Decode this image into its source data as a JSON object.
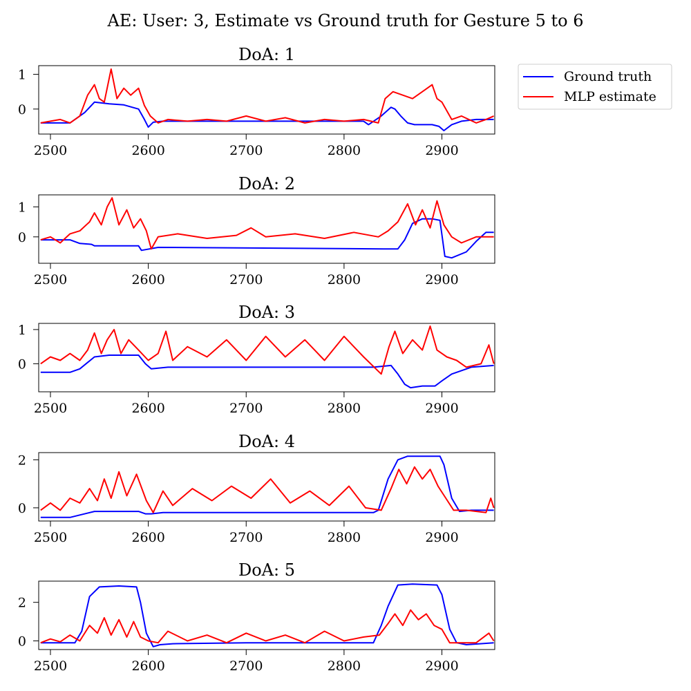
{
  "suptitle": "AE: User: 3, Estimate vs Ground truth for Gesture 5 to 6",
  "legend": {
    "placement": "outside-top-right",
    "entries": [
      {
        "label": "Ground truth",
        "color": "#0000ff"
      },
      {
        "label": "MLP estimate",
        "color": "#ff0000"
      }
    ]
  },
  "chart_data": [
    {
      "type": "line",
      "title": "DoA: 1",
      "xlim": [
        2488,
        2954
      ],
      "ylim": [
        -0.72,
        1.25
      ],
      "xticks": [
        2500,
        2600,
        2700,
        2800,
        2900
      ],
      "yticks": [
        0,
        1
      ],
      "series": [
        {
          "name": "Ground truth",
          "color": "#0000ff",
          "x": [
            2490,
            2520,
            2535,
            2545,
            2560,
            2575,
            2590,
            2596,
            2600,
            2605,
            2615,
            2700,
            2820,
            2825,
            2838,
            2848,
            2852,
            2858,
            2865,
            2872,
            2890,
            2897,
            2902,
            2910,
            2920,
            2935,
            2953
          ],
          "y": [
            -0.4,
            -0.4,
            -0.1,
            0.2,
            0.15,
            0.12,
            0.0,
            -0.3,
            -0.52,
            -0.38,
            -0.35,
            -0.35,
            -0.35,
            -0.45,
            -0.2,
            0.05,
            0.0,
            -0.2,
            -0.4,
            -0.45,
            -0.45,
            -0.5,
            -0.62,
            -0.45,
            -0.35,
            -0.3,
            -0.3
          ]
        },
        {
          "name": "MLP estimate",
          "color": "#ff0000",
          "x": [
            2490,
            2500,
            2510,
            2520,
            2530,
            2538,
            2545,
            2550,
            2555,
            2562,
            2568,
            2575,
            2582,
            2590,
            2596,
            2602,
            2610,
            2620,
            2640,
            2660,
            2680,
            2700,
            2720,
            2740,
            2760,
            2780,
            2800,
            2820,
            2835,
            2842,
            2850,
            2860,
            2870,
            2880,
            2890,
            2895,
            2900,
            2910,
            2920,
            2935,
            2945,
            2953
          ],
          "y": [
            -0.4,
            -0.35,
            -0.3,
            -0.4,
            -0.2,
            0.4,
            0.7,
            0.3,
            0.2,
            1.15,
            0.3,
            0.6,
            0.4,
            0.6,
            0.1,
            -0.2,
            -0.4,
            -0.3,
            -0.35,
            -0.3,
            -0.35,
            -0.2,
            -0.35,
            -0.25,
            -0.4,
            -0.3,
            -0.35,
            -0.3,
            -0.4,
            0.3,
            0.5,
            0.4,
            0.3,
            0.5,
            0.7,
            0.3,
            0.2,
            -0.3,
            -0.2,
            -0.4,
            -0.3,
            -0.2
          ]
        }
      ]
    },
    {
      "type": "line",
      "title": "DoA: 2",
      "xlim": [
        2488,
        2954
      ],
      "ylim": [
        -0.88,
        1.4
      ],
      "xticks": [
        2500,
        2600,
        2700,
        2800,
        2900
      ],
      "yticks": [
        0,
        1
      ],
      "series": [
        {
          "name": "Ground truth",
          "color": "#0000ff",
          "x": [
            2490,
            2520,
            2530,
            2542,
            2545,
            2590,
            2593,
            2610,
            2840,
            2855,
            2862,
            2870,
            2880,
            2890,
            2898,
            2903,
            2910,
            2925,
            2935,
            2945,
            2953
          ],
          "y": [
            -0.1,
            -0.1,
            -0.22,
            -0.25,
            -0.3,
            -0.3,
            -0.45,
            -0.35,
            -0.4,
            -0.4,
            -0.1,
            0.45,
            0.6,
            0.6,
            0.55,
            -0.65,
            -0.7,
            -0.5,
            -0.15,
            0.15,
            0.15
          ]
        },
        {
          "name": "MLP estimate",
          "color": "#ff0000",
          "x": [
            2490,
            2500,
            2510,
            2520,
            2530,
            2540,
            2545,
            2552,
            2558,
            2563,
            2570,
            2578,
            2585,
            2592,
            2598,
            2603,
            2610,
            2630,
            2660,
            2690,
            2705,
            2720,
            2750,
            2780,
            2810,
            2835,
            2845,
            2855,
            2865,
            2873,
            2880,
            2888,
            2895,
            2902,
            2910,
            2920,
            2935,
            2953
          ],
          "y": [
            -0.1,
            0.0,
            -0.2,
            0.1,
            0.2,
            0.5,
            0.8,
            0.4,
            1.0,
            1.3,
            0.4,
            0.9,
            0.3,
            0.6,
            0.2,
            -0.4,
            0.0,
            0.1,
            -0.05,
            0.05,
            0.3,
            0.0,
            0.1,
            -0.05,
            0.15,
            0.0,
            0.2,
            0.5,
            1.1,
            0.4,
            0.9,
            0.3,
            1.2,
            0.4,
            0.0,
            -0.2,
            0.0,
            0.0
          ]
        }
      ]
    },
    {
      "type": "line",
      "title": "DoA: 3",
      "xlim": [
        2488,
        2954
      ],
      "ylim": [
        -0.82,
        1.18
      ],
      "xticks": [
        2500,
        2600,
        2700,
        2800,
        2900
      ],
      "yticks": [
        0,
        1
      ],
      "series": [
        {
          "name": "Ground truth",
          "color": "#0000ff",
          "x": [
            2490,
            2520,
            2530,
            2545,
            2560,
            2590,
            2597,
            2603,
            2620,
            2700,
            2830,
            2848,
            2855,
            2862,
            2868,
            2880,
            2893,
            2900,
            2910,
            2930,
            2953
          ],
          "y": [
            -0.25,
            -0.25,
            -0.15,
            0.2,
            0.25,
            0.25,
            0.0,
            -0.15,
            -0.1,
            -0.1,
            -0.1,
            -0.05,
            -0.3,
            -0.6,
            -0.7,
            -0.65,
            -0.65,
            -0.5,
            -0.3,
            -0.1,
            -0.05
          ]
        },
        {
          "name": "MLP estimate",
          "color": "#ff0000",
          "x": [
            2490,
            2500,
            2510,
            2520,
            2530,
            2538,
            2545,
            2552,
            2558,
            2565,
            2572,
            2580,
            2590,
            2600,
            2610,
            2618,
            2625,
            2640,
            2660,
            2680,
            2700,
            2720,
            2740,
            2760,
            2780,
            2800,
            2820,
            2838,
            2846,
            2852,
            2860,
            2870,
            2880,
            2888,
            2895,
            2905,
            2915,
            2925,
            2940,
            2948,
            2953
          ],
          "y": [
            0.0,
            0.2,
            0.1,
            0.3,
            0.1,
            0.4,
            0.9,
            0.3,
            0.7,
            1.0,
            0.3,
            0.7,
            0.4,
            0.1,
            0.3,
            0.95,
            0.1,
            0.5,
            0.2,
            0.7,
            0.1,
            0.8,
            0.2,
            0.7,
            0.1,
            0.8,
            0.2,
            -0.3,
            0.5,
            0.95,
            0.3,
            0.7,
            0.4,
            1.1,
            0.4,
            0.2,
            0.1,
            -0.1,
            0.0,
            0.55,
            0.0
          ]
        }
      ]
    },
    {
      "type": "line",
      "title": "DoA: 4",
      "xlim": [
        2488,
        2954
      ],
      "ylim": [
        -0.55,
        2.3
      ],
      "xticks": [
        2500,
        2600,
        2700,
        2800,
        2900
      ],
      "yticks": [
        0,
        2
      ],
      "series": [
        {
          "name": "Ground truth",
          "color": "#0000ff",
          "x": [
            2490,
            2520,
            2530,
            2545,
            2560,
            2590,
            2597,
            2603,
            2615,
            2700,
            2830,
            2835,
            2845,
            2855,
            2865,
            2880,
            2898,
            2902,
            2910,
            2918,
            2930,
            2953
          ],
          "y": [
            -0.4,
            -0.4,
            -0.3,
            -0.15,
            -0.15,
            -0.15,
            -0.25,
            -0.25,
            -0.2,
            -0.2,
            -0.2,
            -0.1,
            1.2,
            2.0,
            2.15,
            2.15,
            2.15,
            1.8,
            0.4,
            -0.15,
            -0.1,
            -0.1
          ]
        },
        {
          "name": "MLP estimate",
          "color": "#ff0000",
          "x": [
            2490,
            2500,
            2510,
            2520,
            2530,
            2540,
            2548,
            2555,
            2562,
            2570,
            2578,
            2588,
            2598,
            2605,
            2615,
            2625,
            2645,
            2665,
            2685,
            2705,
            2725,
            2745,
            2765,
            2785,
            2805,
            2822,
            2838,
            2848,
            2856,
            2864,
            2872,
            2880,
            2888,
            2896,
            2904,
            2912,
            2925,
            2945,
            2950,
            2953
          ],
          "y": [
            -0.1,
            0.2,
            -0.1,
            0.4,
            0.2,
            0.8,
            0.3,
            1.2,
            0.4,
            1.5,
            0.5,
            1.4,
            0.3,
            -0.2,
            0.7,
            0.1,
            0.8,
            0.3,
            0.9,
            0.4,
            1.2,
            0.2,
            0.7,
            0.1,
            0.9,
            0.0,
            -0.1,
            0.8,
            1.6,
            1.0,
            1.7,
            1.2,
            1.6,
            0.9,
            0.4,
            -0.1,
            -0.1,
            -0.2,
            0.4,
            0.0
          ]
        }
      ]
    },
    {
      "type": "line",
      "title": "DoA: 5",
      "xlim": [
        2488,
        2954
      ],
      "ylim": [
        -0.45,
        3.1
      ],
      "xticks": [
        2500,
        2600,
        2700,
        2800,
        2900
      ],
      "yticks": [
        0,
        2
      ],
      "series": [
        {
          "name": "Ground truth",
          "color": "#0000ff",
          "x": [
            2490,
            2525,
            2532,
            2540,
            2550,
            2570,
            2588,
            2592,
            2598,
            2605,
            2612,
            2625,
            2700,
            2830,
            2838,
            2845,
            2855,
            2870,
            2895,
            2900,
            2908,
            2915,
            2925,
            2953
          ],
          "y": [
            -0.1,
            -0.1,
            0.5,
            2.3,
            2.8,
            2.85,
            2.8,
            2.0,
            0.4,
            -0.3,
            -0.2,
            -0.15,
            -0.1,
            -0.1,
            0.8,
            1.8,
            2.9,
            2.95,
            2.9,
            2.4,
            0.6,
            -0.1,
            -0.2,
            -0.1
          ]
        },
        {
          "name": "MLP estimate",
          "color": "#ff0000",
          "x": [
            2490,
            2500,
            2510,
            2520,
            2530,
            2540,
            2548,
            2555,
            2562,
            2570,
            2578,
            2585,
            2592,
            2600,
            2610,
            2620,
            2640,
            2660,
            2680,
            2700,
            2720,
            2740,
            2760,
            2780,
            2800,
            2820,
            2836,
            2845,
            2852,
            2860,
            2868,
            2876,
            2884,
            2892,
            2900,
            2908,
            2918,
            2935,
            2948,
            2953
          ],
          "y": [
            -0.1,
            0.1,
            -0.05,
            0.3,
            0.0,
            0.8,
            0.4,
            1.2,
            0.3,
            1.1,
            0.2,
            1.0,
            0.2,
            0.0,
            -0.1,
            0.5,
            0.0,
            0.3,
            -0.1,
            0.4,
            0.0,
            0.3,
            -0.1,
            0.5,
            0.0,
            0.2,
            0.3,
            0.9,
            1.4,
            0.8,
            1.6,
            1.1,
            1.4,
            0.8,
            0.6,
            -0.1,
            -0.1,
            -0.1,
            0.4,
            0.0
          ]
        }
      ]
    }
  ]
}
